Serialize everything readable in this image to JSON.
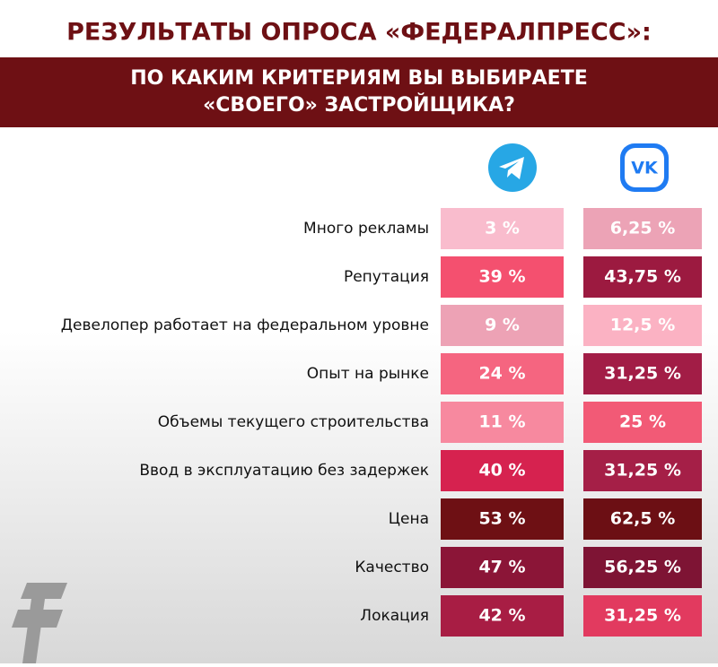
{
  "header": {
    "title": "РЕЗУЛЬТАТЫ ОПРОСА «ФЕДЕРАЛПРЕСС»:",
    "question": [
      "ПО КАКИМ КРИТЕРИЯМ ВЫ ВЫБИРАЕТЕ",
      "«СВОЕГО» ЗАСТРОЙЩИКА?"
    ]
  },
  "table": {
    "rows": [
      {
        "label": "Много рекламы",
        "telegram": {
          "text": "3 %",
          "color": "#f9bccd"
        },
        "vk": {
          "text": "6,25 %",
          "color": "#eca3b6"
        }
      },
      {
        "label": "Репутация",
        "telegram": {
          "text": "39 %",
          "color": "#f4506f"
        },
        "vk": {
          "text": "43,75 %",
          "color": "#9c1a40"
        }
      },
      {
        "label": "Девелопер работает на федеральном уровне",
        "telegram": {
          "text": "9 %",
          "color": "#eda2b5"
        },
        "vk": {
          "text": "12,5 %",
          "color": "#fbb2c3"
        }
      },
      {
        "label": "Опыт на рынке",
        "telegram": {
          "text": "24 %",
          "color": "#f56580"
        },
        "vk": {
          "text": "31,25 %",
          "color": "#a21d46"
        }
      },
      {
        "label": "Объемы текущего строительства",
        "telegram": {
          "text": "11 %",
          "color": "#f7899f"
        },
        "vk": {
          "text": "25 %",
          "color": "#f25a76"
        }
      },
      {
        "label": "Ввод в эксплуатацию без задержек",
        "telegram": {
          "text": "40 %",
          "color": "#d6224f"
        },
        "vk": {
          "text": "31,25 %",
          "color": "#a51f47"
        }
      },
      {
        "label": "Цена",
        "telegram": {
          "text": "53 %",
          "color": "#6e1014"
        },
        "vk": {
          "text": "62,5 %",
          "color": "#6c0f14"
        }
      },
      {
        "label": "Качество",
        "telegram": {
          "text": "47 %",
          "color": "#8b1537"
        },
        "vk": {
          "text": "56,25 %",
          "color": "#7e1434"
        }
      },
      {
        "label": "Локация",
        "telegram": {
          "text": "42 %",
          "color": "#a81d44"
        },
        "vk": {
          "text": "31,25 %",
          "color": "#e23a5f"
        }
      }
    ]
  }
}
